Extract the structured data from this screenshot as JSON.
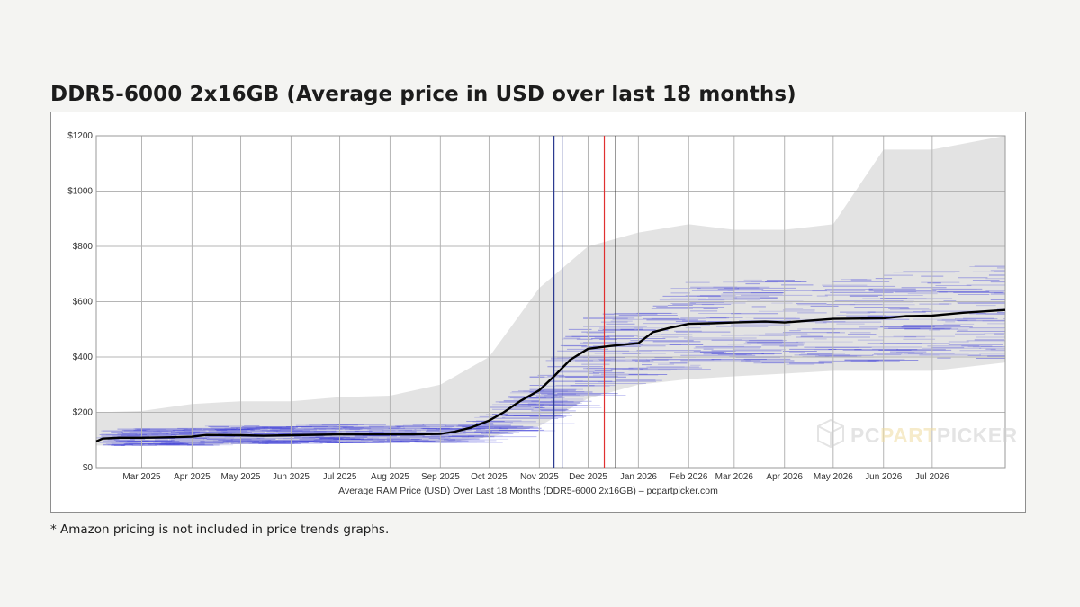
{
  "page": {
    "title": "DDR5-6000 2x16GB (Average price in USD over last 18 months)",
    "footnote": "* Amazon pricing is not included in price trends graphs."
  },
  "watermark": {
    "text_a": "PC",
    "text_b": "PART",
    "text_c": "PICKER"
  },
  "colors": {
    "average_line": "#000000",
    "price_band": "#d9d9d9",
    "price_lines": "#3a3ad8",
    "marker_blue": "#2b3a8f",
    "marker_red": "#e03030",
    "marker_black": "#222222",
    "grid": "#b5b5b5"
  },
  "chart_data": {
    "type": "line",
    "xlabel": "Average RAM Price (USD) Over Last 18 Months (DDR5-6000 2x16GB) – pcpartpicker.com",
    "ylabel": "",
    "ylim": [
      0,
      1200
    ],
    "xlim": [
      "2025-02-01",
      "2026-08-15"
    ],
    "yticks": [
      {
        "value": 0,
        "label": "$0"
      },
      {
        "value": 200,
        "label": "$200"
      },
      {
        "value": 400,
        "label": "$400"
      },
      {
        "value": 600,
        "label": "$600"
      },
      {
        "value": 800,
        "label": "$800"
      },
      {
        "value": 1000,
        "label": "$1000"
      },
      {
        "value": 1200,
        "label": "$1200"
      }
    ],
    "xticks": [
      {
        "date": "2025-03-01",
        "label": "Mar 2025"
      },
      {
        "date": "2025-04-01",
        "label": "Apr 2025"
      },
      {
        "date": "2025-05-01",
        "label": "May 2025"
      },
      {
        "date": "2025-06-01",
        "label": "Jun 2025"
      },
      {
        "date": "2025-07-01",
        "label": "Jul 2025"
      },
      {
        "date": "2025-08-01",
        "label": "Aug 2025"
      },
      {
        "date": "2025-09-01",
        "label": "Sep 2025"
      },
      {
        "date": "2025-10-01",
        "label": "Oct 2025"
      },
      {
        "date": "2025-11-01",
        "label": "Nov 2025"
      },
      {
        "date": "2025-12-01",
        "label": "Dec 2025"
      },
      {
        "date": "2026-01-01",
        "label": "Jan 2026"
      },
      {
        "date": "2026-02-01",
        "label": "Feb 2026"
      },
      {
        "date": "2026-03-01",
        "label": "Mar 2026"
      },
      {
        "date": "2026-04-01",
        "label": "Apr 2026"
      },
      {
        "date": "2026-05-01",
        "label": "May 2026"
      },
      {
        "date": "2026-06-01",
        "label": "Jun 2026"
      },
      {
        "date": "2026-07-01",
        "label": "Jul 2026"
      }
    ],
    "grid": true,
    "legend": "none",
    "series": [
      {
        "kind": "average",
        "points": [
          [
            "2025-02-01",
            95
          ],
          [
            "2025-02-05",
            105
          ],
          [
            "2025-02-15",
            108
          ],
          [
            "2025-03-01",
            108
          ],
          [
            "2025-03-20",
            110
          ],
          [
            "2025-04-01",
            112
          ],
          [
            "2025-04-10",
            118
          ],
          [
            "2025-05-01",
            117
          ],
          [
            "2025-05-15",
            115
          ],
          [
            "2025-06-01",
            117
          ],
          [
            "2025-07-01",
            120
          ],
          [
            "2025-08-01",
            120
          ],
          [
            "2025-08-15",
            120
          ],
          [
            "2025-09-01",
            122
          ],
          [
            "2025-09-10",
            130
          ],
          [
            "2025-09-20",
            145
          ],
          [
            "2025-10-01",
            170
          ],
          [
            "2025-10-10",
            200
          ],
          [
            "2025-10-20",
            240
          ],
          [
            "2025-11-01",
            280
          ],
          [
            "2025-11-10",
            330
          ],
          [
            "2025-11-20",
            390
          ],
          [
            "2025-12-01",
            430
          ],
          [
            "2025-12-15",
            440
          ],
          [
            "2026-01-01",
            450
          ],
          [
            "2026-01-10",
            490
          ],
          [
            "2026-01-20",
            505
          ],
          [
            "2026-02-01",
            520
          ],
          [
            "2026-02-15",
            522
          ],
          [
            "2026-03-01",
            525
          ],
          [
            "2026-03-20",
            528
          ],
          [
            "2026-04-01",
            525
          ],
          [
            "2026-05-01",
            538
          ],
          [
            "2026-06-01",
            540
          ],
          [
            "2026-06-15",
            548
          ],
          [
            "2026-07-01",
            550
          ],
          [
            "2026-07-20",
            560
          ],
          [
            "2026-08-15",
            570
          ]
        ]
      }
    ],
    "price_range": {
      "kind": "min-max band",
      "points": [
        [
          "2025-02-01",
          80,
          200
        ],
        [
          "2025-03-01",
          80,
          205
        ],
        [
          "2025-04-01",
          80,
          230
        ],
        [
          "2025-05-01",
          85,
          240
        ],
        [
          "2025-06-01",
          90,
          240
        ],
        [
          "2025-07-01",
          90,
          255
        ],
        [
          "2025-08-01",
          95,
          260
        ],
        [
          "2025-09-01",
          90,
          300
        ],
        [
          "2025-10-01",
          110,
          400
        ],
        [
          "2025-11-01",
          150,
          650
        ],
        [
          "2025-12-01",
          250,
          800
        ],
        [
          "2026-01-01",
          300,
          850
        ],
        [
          "2026-02-01",
          320,
          880
        ],
        [
          "2026-03-01",
          330,
          860
        ],
        [
          "2026-04-01",
          340,
          860
        ],
        [
          "2026-05-01",
          350,
          880
        ],
        [
          "2026-06-01",
          350,
          1150
        ],
        [
          "2026-07-01",
          350,
          1150
        ],
        [
          "2026-08-15",
          380,
          1200
        ]
      ]
    },
    "annotations": [
      {
        "kind": "vertical-line",
        "color": "blue",
        "date": "2025-11-10"
      },
      {
        "kind": "vertical-line",
        "color": "blue",
        "date": "2025-11-15"
      },
      {
        "kind": "vertical-line",
        "color": "red",
        "date": "2025-12-11"
      },
      {
        "kind": "vertical-line",
        "color": "black",
        "date": "2025-12-18"
      }
    ]
  }
}
